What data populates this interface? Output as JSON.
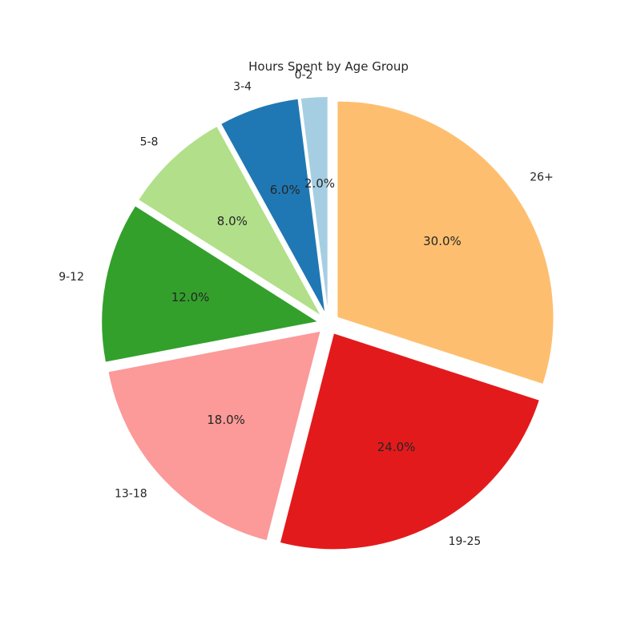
{
  "chart_data": {
    "type": "pie",
    "title": "Hours Spent by Age Group",
    "categories": [
      "0-2",
      "3-4",
      "5-8",
      "9-12",
      "13-18",
      "19-25",
      "26+"
    ],
    "values": [
      2.0,
      6.0,
      8.0,
      12.0,
      18.0,
      24.0,
      30.0
    ],
    "percent_labels": [
      "2.0%",
      "6.0%",
      "8.0%",
      "12.0%",
      "18.0%",
      "24.0%",
      "30.0%"
    ],
    "colors": [
      "#a6cee3",
      "#1f78b4",
      "#b2df8a",
      "#33a02c",
      "#fb9a99",
      "#e31a1c",
      "#fdbf6f"
    ],
    "start_angle_deg": 90,
    "direction": "counterclockwise",
    "exploded": true,
    "legend": "none"
  }
}
